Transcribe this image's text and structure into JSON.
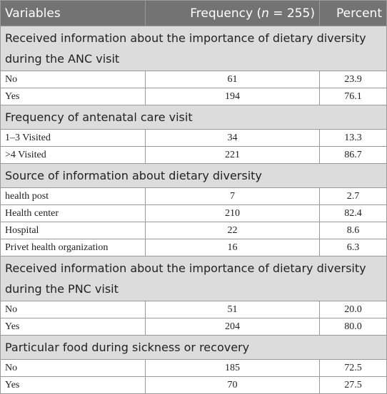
{
  "header": {
    "variables": "Variables",
    "frequency": "Frequency (",
    "n_symbol": "n",
    "frequency_tail": " = 255)",
    "percent": "Percent"
  },
  "sections": [
    {
      "title": "Received information about the importance of dietary diversity during the ANC visit",
      "rows": [
        {
          "label": "No",
          "frequency": "61",
          "percent": "23.9"
        },
        {
          "label": "Yes",
          "frequency": "194",
          "percent": "76.1"
        }
      ]
    },
    {
      "title": "Frequency of antenatal care visit",
      "rows": [
        {
          "label": "1–3 Visited",
          "frequency": "34",
          "percent": "13.3"
        },
        {
          "label": ">4 Visited",
          "frequency": "221",
          "percent": "86.7"
        }
      ]
    },
    {
      "title": "Source of information about dietary diversity",
      "rows": [
        {
          "label": "health post",
          "frequency": "7",
          "percent": "2.7"
        },
        {
          "label": "Health center",
          "frequency": "210",
          "percent": "82.4"
        },
        {
          "label": "Hospital",
          "frequency": "22",
          "percent": "8.6"
        },
        {
          "label": "Privet health organization",
          "frequency": "16",
          "percent": "6.3"
        }
      ]
    },
    {
      "title": "Received information about the importance of dietary diversity during the PNC visit",
      "rows": [
        {
          "label": "No",
          "frequency": "51",
          "percent": "20.0"
        },
        {
          "label": "Yes",
          "frequency": "204",
          "percent": "80.0"
        }
      ]
    },
    {
      "title": "Particular food during sickness or recovery",
      "rows": [
        {
          "label": "No",
          "frequency": "185",
          "percent": "72.5"
        },
        {
          "label": "Yes",
          "frequency": "70",
          "percent": "27.5"
        }
      ]
    }
  ]
}
